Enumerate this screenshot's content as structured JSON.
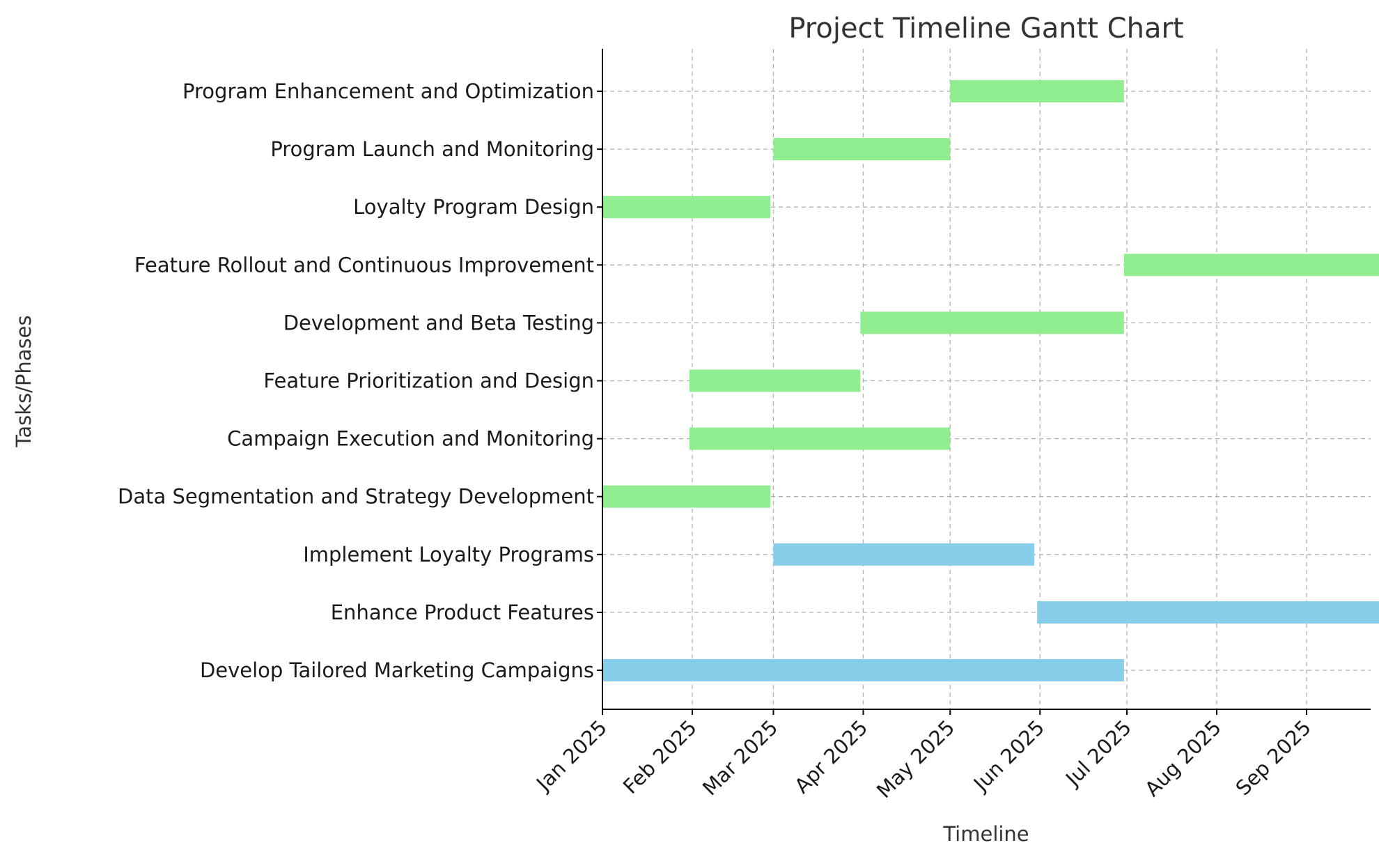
{
  "chart_data": {
    "type": "gantt",
    "title": "Project Timeline Gantt Chart",
    "xlabel": "Timeline",
    "ylabel": "Tasks/Phases",
    "x_axis": {
      "type": "date",
      "range": [
        "2025-01-01",
        "2025-09-15"
      ],
      "ticks": [
        {
          "date": "2025-01-01",
          "label": "Jan 2025"
        },
        {
          "date": "2025-02-01",
          "label": "Feb 2025"
        },
        {
          "date": "2025-03-01",
          "label": "Mar 2025"
        },
        {
          "date": "2025-04-01",
          "label": "Apr 2025"
        },
        {
          "date": "2025-05-01",
          "label": "May 2025"
        },
        {
          "date": "2025-06-01",
          "label": "Jun 2025"
        },
        {
          "date": "2025-07-01",
          "label": "Jul 2025"
        },
        {
          "date": "2025-08-01",
          "label": "Aug 2025"
        },
        {
          "date": "2025-09-01",
          "label": "Sep 2025"
        }
      ]
    },
    "grid": true,
    "colors": {
      "goal": "#87ceeb",
      "phase": "#90ee90"
    },
    "tasks": [
      {
        "name": "Develop Tailored Marketing Campaigns",
        "start": "2025-01-01",
        "end": "2025-06-30",
        "kind": "goal"
      },
      {
        "name": "Enhance Product Features",
        "start": "2025-05-31",
        "end": "2025-09-27",
        "kind": "goal"
      },
      {
        "name": "Implement Loyalty Programs",
        "start": "2025-03-01",
        "end": "2025-05-30",
        "kind": "goal"
      },
      {
        "name": "Data Segmentation and Strategy Development",
        "start": "2025-01-01",
        "end": "2025-02-28",
        "kind": "phase"
      },
      {
        "name": "Campaign Execution and Monitoring",
        "start": "2025-01-31",
        "end": "2025-05-01",
        "kind": "phase"
      },
      {
        "name": "Feature Prioritization and Design",
        "start": "2025-01-31",
        "end": "2025-03-31",
        "kind": "phase"
      },
      {
        "name": "Development and Beta Testing",
        "start": "2025-03-31",
        "end": "2025-06-30",
        "kind": "phase"
      },
      {
        "name": "Feature Rollout and Continuous Improvement",
        "start": "2025-06-30",
        "end": "2025-09-27",
        "kind": "phase"
      },
      {
        "name": "Loyalty Program Design",
        "start": "2025-01-01",
        "end": "2025-02-28",
        "kind": "phase"
      },
      {
        "name": "Program Launch and Monitoring",
        "start": "2025-03-01",
        "end": "2025-05-01",
        "kind": "phase"
      },
      {
        "name": "Program Enhancement and Optimization",
        "start": "2025-05-01",
        "end": "2025-06-30",
        "kind": "phase"
      }
    ]
  }
}
